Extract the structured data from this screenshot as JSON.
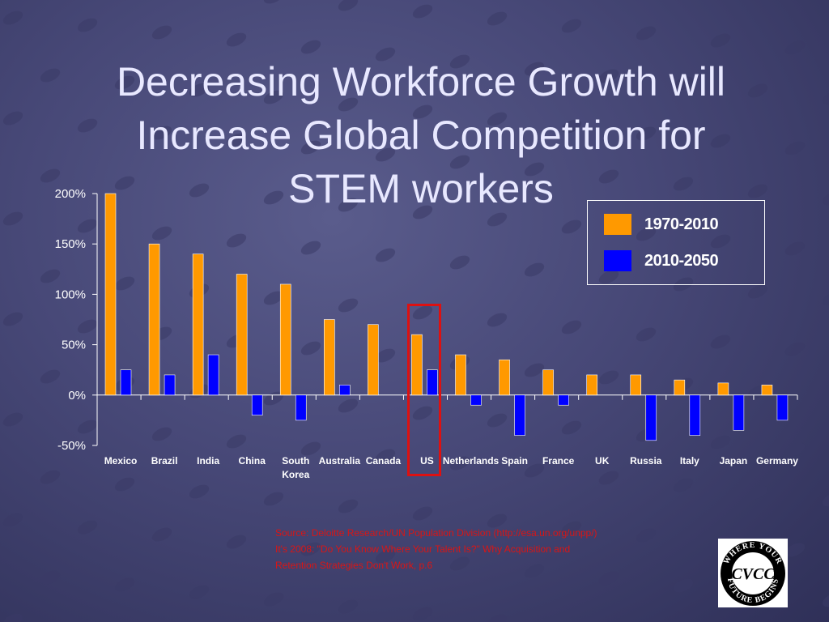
{
  "slide": {
    "title_lines": [
      "Decreasing Workforce Growth will",
      "Increase Global Competition for",
      "STEM workers"
    ],
    "source_lines": [
      "Source: Deloitte Research/UN Population Division (http://esa.un.org/unpp/)",
      "It's 2008: \"Do You Know Where Your Talent Is?\" Why Acquisition and",
      "Retention Strategies Don't Work, p.6"
    ],
    "logo": {
      "monogram": "CVCC",
      "ring_text": "WHERE YOUR FUTURE BEGINS"
    }
  },
  "chart_data": {
    "type": "bar",
    "categories": [
      "Mexico",
      "Brazil",
      "India",
      "China",
      "South Korea",
      "Australia",
      "Canada",
      "US",
      "Netherlands",
      "Spain",
      "France",
      "UK",
      "Russia",
      "Italy",
      "Japan",
      "Germany"
    ],
    "series": [
      {
        "name": "1970-2010",
        "color": "#ff9900",
        "values": [
          200,
          150,
          140,
          120,
          110,
          75,
          70,
          60,
          40,
          35,
          25,
          20,
          20,
          15,
          12,
          10
        ]
      },
      {
        "name": "2010-2050",
        "color": "#0000ff",
        "values": [
          25,
          20,
          40,
          -20,
          -25,
          10,
          0,
          25,
          -10,
          -40,
          -10,
          0,
          -45,
          -40,
          -35,
          -25
        ]
      }
    ],
    "ylim": [
      -50,
      200
    ],
    "yticks": [
      200,
      150,
      100,
      50,
      0,
      -50
    ],
    "ytick_labels": [
      "200%",
      "150%",
      "100%",
      "50%",
      "0%",
      "-50%"
    ],
    "xlabel": "",
    "ylabel": "",
    "legend_position": "top-right",
    "highlighted_category": "US",
    "highlight_color": "#dd1111",
    "grid": false
  }
}
